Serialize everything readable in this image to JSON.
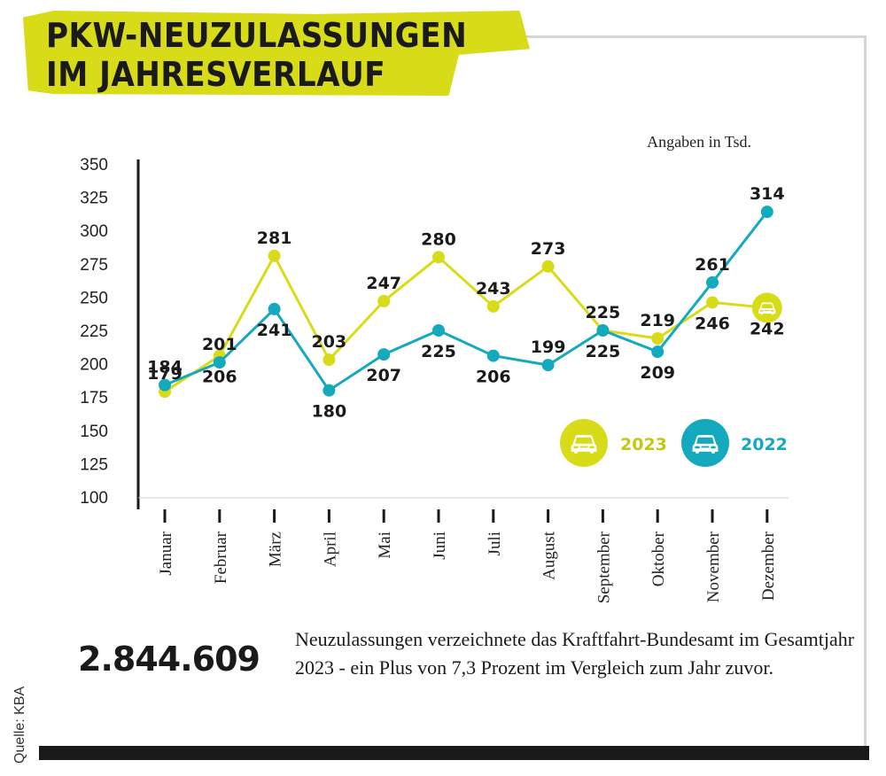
{
  "title": {
    "line1": "PKW-NEUZULASSUNGEN",
    "line2": "IM JAHRESVERLAUF"
  },
  "unit_note": "Angaben in Tsd.",
  "colors": {
    "y2023": "#d8dc18",
    "y2022": "#14a9bd",
    "title_band": "#d8dc18",
    "text": "#1a1a1a"
  },
  "chart_data": {
    "type": "line",
    "title": "PKW-NEUZULASSUNGEN IM JAHRESVERLAUF",
    "ylabel": "Angaben in Tsd.",
    "xlabel": "",
    "categories": [
      "Januar",
      "Februar",
      "März",
      "April",
      "Mai",
      "Juni",
      "Juli",
      "August",
      "September",
      "Oktober",
      "November",
      "Dezember"
    ],
    "ylim": [
      100,
      350
    ],
    "yticks": [
      100,
      125,
      150,
      175,
      200,
      225,
      250,
      275,
      300,
      325,
      350
    ],
    "series": [
      {
        "name": "2023",
        "color": "#d8dc18",
        "values": [
          179,
          206,
          281,
          203,
          247,
          280,
          243,
          273,
          225,
          219,
          246,
          242
        ],
        "labels": [
          "179",
          "206",
          "281",
          "203",
          "247",
          "280",
          "243",
          "273",
          "225",
          "219",
          "246",
          "242"
        ]
      },
      {
        "name": "2022",
        "color": "#14a9bd",
        "values": [
          184,
          201,
          241,
          180,
          207,
          225,
          206,
          199,
          225,
          209,
          261,
          314
        ],
        "labels": [
          "184",
          "201",
          "241",
          "180",
          "207",
          "225",
          "206",
          "199",
          "225",
          "209",
          "261",
          "314"
        ]
      }
    ],
    "legend": [
      "2023",
      "2022"
    ],
    "legend_position": "right"
  },
  "summary": {
    "total": "2.844.609",
    "description": "Neuzulassungen verzeichnete das Kraftfahrt-Bundesamt im Gesamtjahr 2023 - ein Plus von 7,3 Prozent im Vergleich zum Jahr zuvor."
  },
  "source": "Quelle: KBA",
  "icons": {
    "legend": "car-icon"
  }
}
